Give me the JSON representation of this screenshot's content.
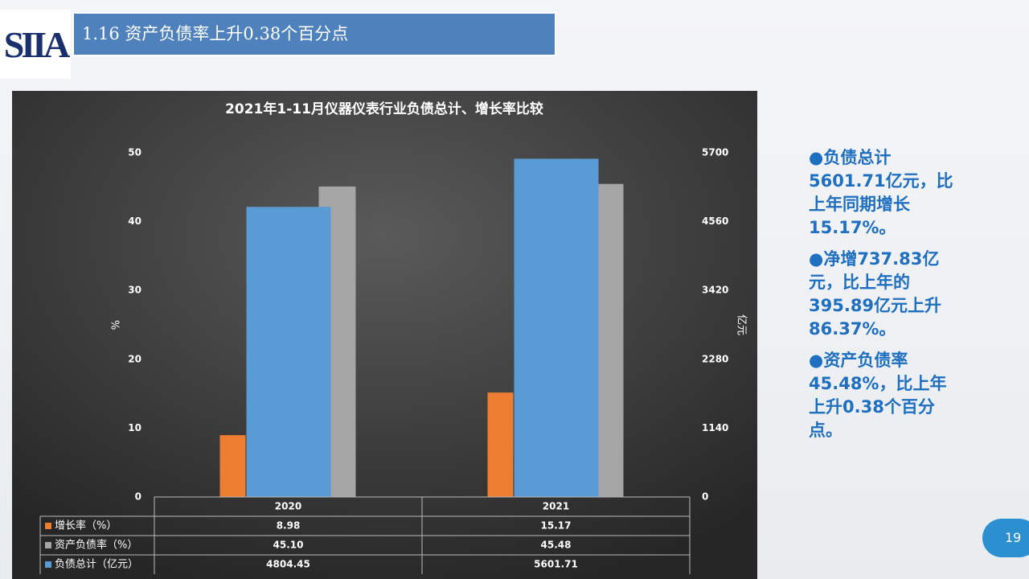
{
  "logo": "SIIA",
  "header": {
    "title": "1.16 资产负债率上升0.38个百分点"
  },
  "notes": [
    "●负债总计5601.71亿元，比上年同期增长15.17%。",
    "●净增737.83亿元，比上年的395.89亿元上升86.37%。",
    "●资产负债率45.48%，比上年上升0.38个百分点。"
  ],
  "page_number": "19",
  "chart_data": {
    "type": "bar",
    "title": "2021年1-11月仪器仪表行业负债总计、增长率比较",
    "categories": [
      "2020",
      "2021"
    ],
    "series": [
      {
        "name": "增长率（%）",
        "color": "#ed7d31",
        "values": [
          8.98,
          15.17
        ],
        "axis": "y"
      },
      {
        "name": "资产负债率（%）",
        "color": "#a5a5a5",
        "values": [
          45.1,
          45.48
        ],
        "value_labels": [
          "45.10",
          "45.48"
        ],
        "axis": "y"
      },
      {
        "name": "负债总计（亿元）",
        "color": "#5b9bd5",
        "values": [
          4804.45,
          5601.71
        ],
        "axis": "y2"
      }
    ],
    "ylabel": "%",
    "y2label": "亿元",
    "ylim": [
      0,
      50
    ],
    "yticks": [
      0,
      10,
      20,
      30,
      40,
      50
    ],
    "y2lim": [
      0,
      5700
    ],
    "y2ticks": [
      0,
      1140,
      2280,
      3420,
      4560,
      5700
    ],
    "grid": false
  }
}
